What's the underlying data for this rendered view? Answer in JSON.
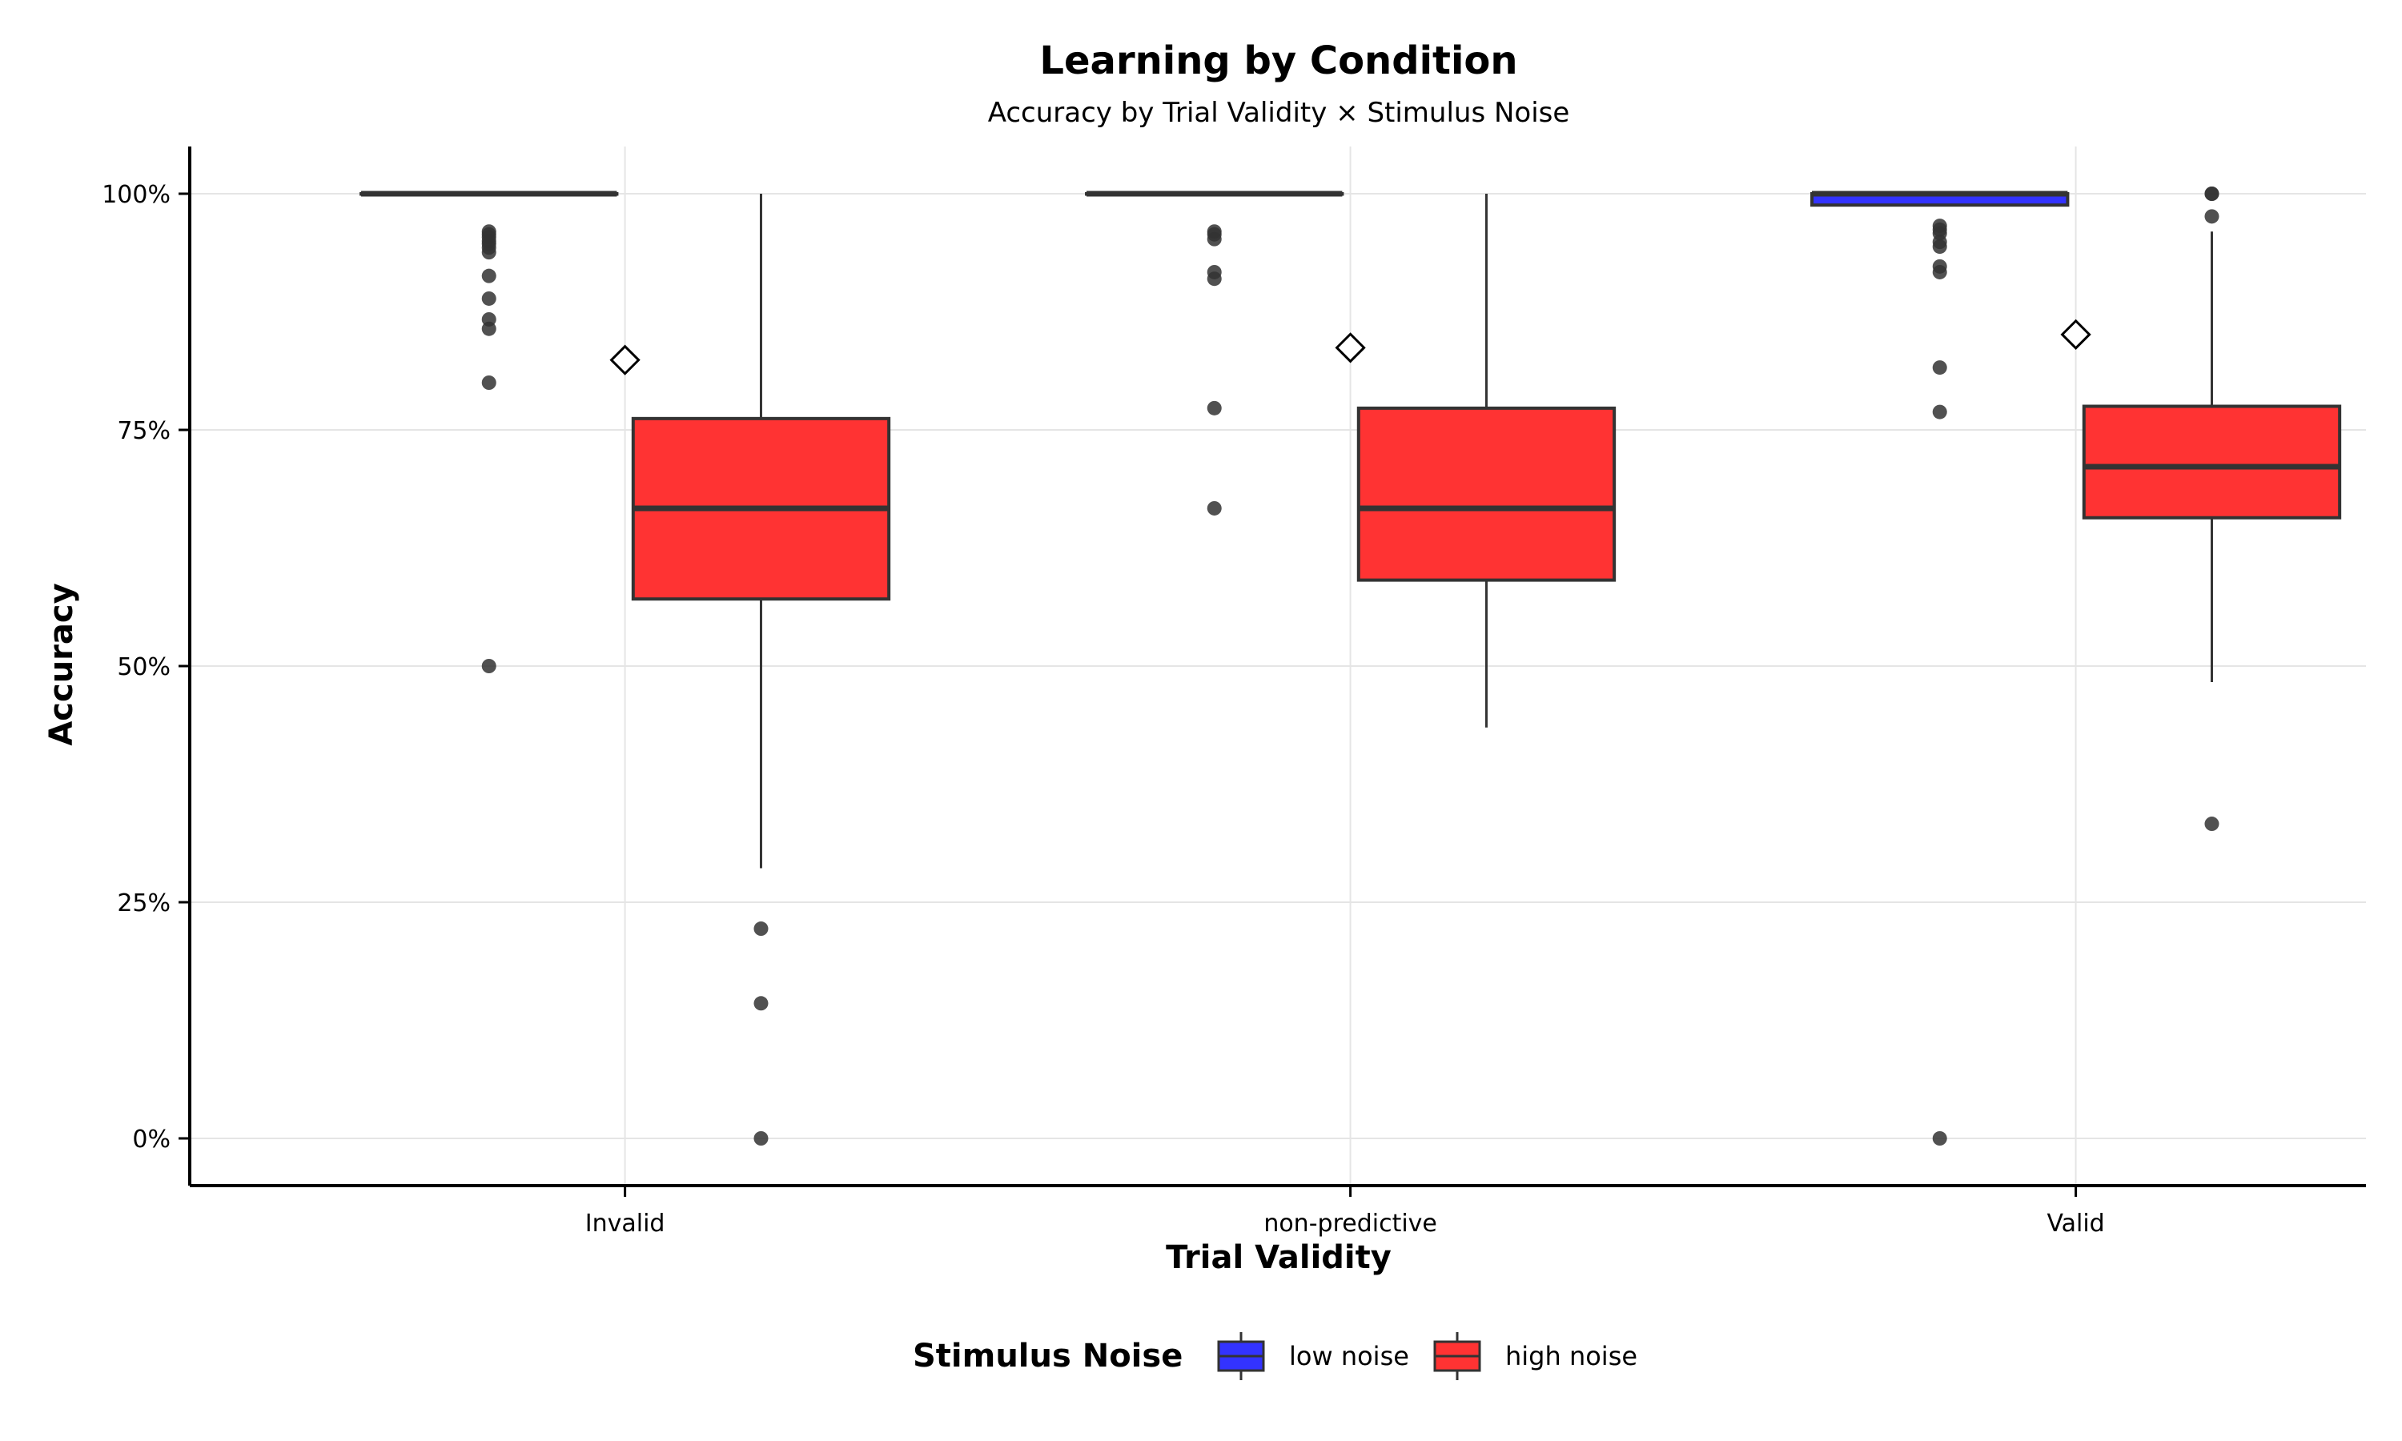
{
  "chart_data": {
    "type": "box",
    "title": "Learning by Condition",
    "subtitle": "Accuracy by Trial Validity × Stimulus Noise",
    "xlabel": "Trial Validity",
    "ylabel": "Accuracy",
    "categories": [
      "Invalid",
      "non-predictive",
      "Valid"
    ],
    "y_ticks": [
      0,
      25,
      50,
      75,
      100
    ],
    "y_tick_labels": [
      "0%",
      "25%",
      "50%",
      "75%",
      "100%"
    ],
    "ylim": [
      -5,
      105
    ],
    "grid": true,
    "legend": {
      "title": "Stimulus Noise",
      "position": "bottom",
      "entries": [
        {
          "label": "low noise",
          "color": "#3333ff"
        },
        {
          "label": "high noise",
          "color": "#ff3333"
        }
      ]
    },
    "series": [
      {
        "name": "low noise",
        "color": "#3333ff",
        "boxes": [
          {
            "category": "Invalid",
            "whisker_low": 100,
            "q1": 100,
            "median": 100,
            "q3": 100,
            "whisker_high": 100,
            "outliers": [
              96,
              95.7,
              95.4,
              95,
              94.7,
              94.3,
              93.8,
              91.3,
              88.9,
              86.7,
              85.7,
              80,
              50
            ]
          },
          {
            "category": "non-predictive",
            "whisker_low": 100,
            "q1": 100,
            "median": 100,
            "q3": 100,
            "whisker_high": 100,
            "outliers": [
              96,
              95.7,
              95.2,
              91.7,
              91,
              77.3,
              66.7
            ]
          },
          {
            "category": "Valid",
            "whisker_low": 98.8,
            "q1": 98.8,
            "median": 100,
            "q3": 100,
            "whisker_high": 100,
            "outliers": [
              96.6,
              96.2,
              95.8,
              94.9,
              94.4,
              92.3,
              91.7,
              81.6,
              76.9,
              0
            ]
          }
        ]
      },
      {
        "name": "high noise",
        "color": "#ff3333",
        "boxes": [
          {
            "category": "Invalid",
            "whisker_low": 28.6,
            "q1": 57.1,
            "median": 66.7,
            "q3": 76.2,
            "whisker_high": 100,
            "outliers": [
              22.2,
              14.3,
              0
            ]
          },
          {
            "category": "non-predictive",
            "whisker_low": 43.5,
            "q1": 59.1,
            "median": 66.7,
            "q3": 77.3,
            "whisker_high": 100,
            "outliers": []
          },
          {
            "category": "Valid",
            "whisker_low": 48.3,
            "q1": 65.7,
            "median": 71.1,
            "q3": 77.5,
            "whisker_high": 96,
            "outliers": [
              100,
              100,
              97.6,
              33.3
            ]
          }
        ]
      }
    ],
    "means": [
      {
        "category": "Invalid",
        "value": 82.4
      },
      {
        "category": "non-predictive",
        "value": 83.7
      },
      {
        "category": "Valid",
        "value": 85.1
      }
    ]
  }
}
